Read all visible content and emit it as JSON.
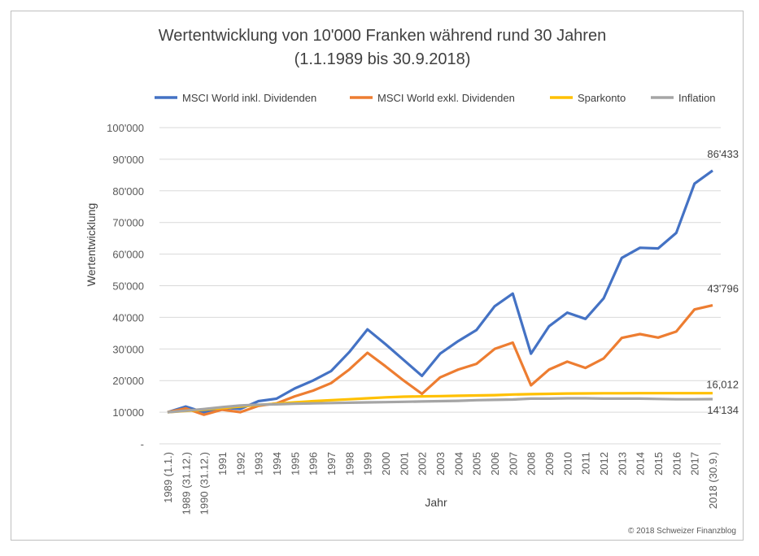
{
  "chart_data": {
    "type": "line",
    "title": "Wertentwicklung von 10'000 Franken während rund 30 Jahren",
    "subtitle": "(1.1.1989 bis 30.9.2018)",
    "xlabel": "Jahr",
    "ylabel": "Wertentwicklung",
    "ylim": [
      0,
      100000
    ],
    "yticks": [
      "-",
      "10'000",
      "20'000",
      "30'000",
      "40'000",
      "50'000",
      "60'000",
      "70'000",
      "80'000",
      "90'000",
      "100'000"
    ],
    "grid": true,
    "legend": "top",
    "categories": [
      "1989 (1.1.)",
      "1989 (31.12.)",
      "1990 (31.12.)",
      "1991",
      "1992",
      "1993",
      "1994",
      "1995",
      "1996",
      "1997",
      "1998",
      "1999",
      "2000",
      "2001",
      "2002",
      "2003",
      "2004",
      "2005",
      "2006",
      "2007",
      "2008",
      "2009",
      "2010",
      "2011",
      "2012",
      "2013",
      "2014",
      "2015",
      "2016",
      "2017",
      "2018 (30.9.)"
    ],
    "series": [
      {
        "name": "MSCI World inkl. Dividenden",
        "color": "#4472C4",
        "end_label": "86'433",
        "values": [
          10000,
          11800,
          10000,
          11500,
          11000,
          13500,
          14300,
          17500,
          20000,
          23000,
          29000,
          36200,
          31500,
          26500,
          21500,
          28500,
          32500,
          36000,
          43500,
          47500,
          28500,
          37200,
          41500,
          39500,
          46000,
          58800,
          62000,
          61800,
          66700,
          82300,
          86433
        ]
      },
      {
        "name": "MSCI World exkl. Dividenden",
        "color": "#ED7D31",
        "end_label": "43'796",
        "values": [
          10000,
          11200,
          9200,
          10800,
          10000,
          12000,
          12800,
          15000,
          16800,
          19200,
          23500,
          28800,
          24500,
          20000,
          15800,
          21000,
          23500,
          25300,
          30000,
          32000,
          18500,
          23500,
          26000,
          24000,
          27000,
          33500,
          34700,
          33600,
          35500,
          42500,
          43796
        ]
      },
      {
        "name": "Sparkonto",
        "color": "#FFC000",
        "end_label": "16,012",
        "values": [
          10000,
          10400,
          10800,
          11300,
          11800,
          12300,
          12700,
          13100,
          13500,
          13800,
          14100,
          14400,
          14700,
          14900,
          15000,
          15100,
          15200,
          15300,
          15400,
          15600,
          15700,
          15800,
          15900,
          15950,
          16000,
          16000,
          16010,
          16010,
          16012,
          16012,
          16012
        ]
      },
      {
        "name": "Inflation",
        "color": "#A5A5A5",
        "end_label": "14'134",
        "values": [
          10000,
          10500,
          11000,
          11600,
          12100,
          12400,
          12500,
          12700,
          12800,
          12900,
          13000,
          13100,
          13200,
          13300,
          13400,
          13500,
          13600,
          13800,
          13900,
          14000,
          14300,
          14300,
          14400,
          14400,
          14300,
          14300,
          14300,
          14200,
          14100,
          14100,
          14134
        ]
      }
    ],
    "footer": "© 2018 Schweizer Finanzblog"
  }
}
